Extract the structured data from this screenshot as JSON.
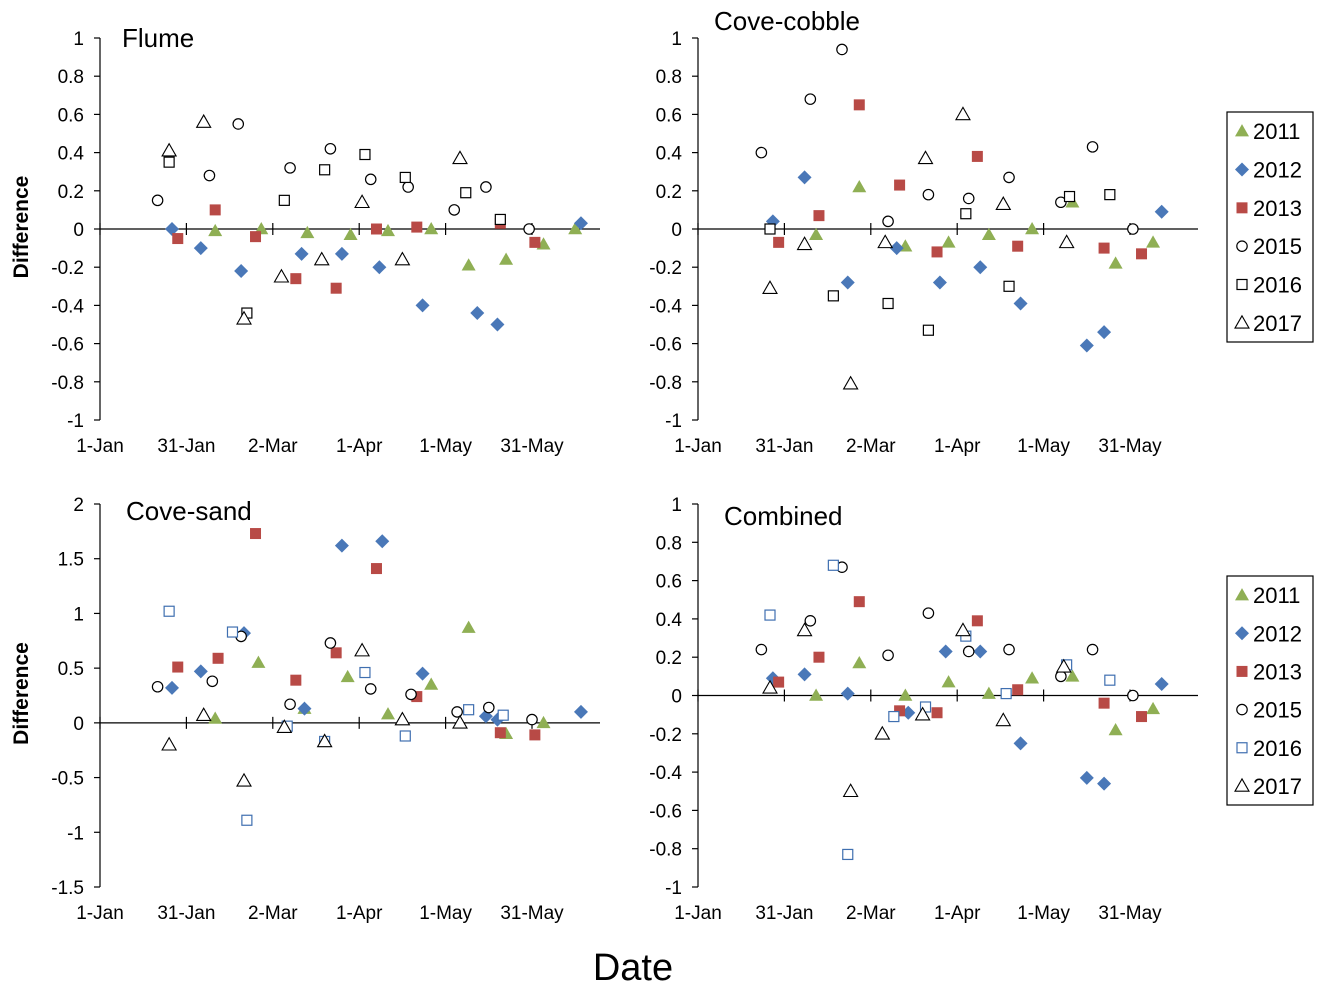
{
  "figure": {
    "xlabel_shared": "Date",
    "legend_entries": [
      "2011",
      "2012",
      "2013",
      "2015",
      "2016",
      "2017"
    ]
  },
  "series_styles": {
    "2011": {
      "marker": "triangle-filled",
      "color": "#8faf54"
    },
    "2012": {
      "marker": "diamond-filled",
      "color": "#4a78b8"
    },
    "2013": {
      "marker": "square-filled",
      "color": "#b84a46"
    },
    "2015": {
      "marker": "circle-open",
      "color": "#000000"
    },
    "2016a": {
      "marker": "square-open",
      "color": "#000000"
    },
    "2016b": {
      "marker": "square-open",
      "color": "#3f6fb0"
    },
    "2017": {
      "marker": "triangle-open",
      "color": "#000000"
    }
  },
  "chart_data": [
    {
      "type": "scatter",
      "title": "Flume",
      "ylabel": "Difference",
      "ylim": [
        -1,
        1
      ],
      "yticks": [
        -1,
        -0.8,
        -0.6,
        -0.4,
        -0.2,
        0,
        0.2,
        0.4,
        0.6,
        0.8,
        1
      ],
      "ytick_labels": [
        "-1",
        "-0.8",
        "-0.6",
        "-0.4",
        "-0.2",
        "0",
        "0.2",
        "0.4",
        "0.6",
        "0.8",
        "1"
      ],
      "x_tick_labels": [
        "1-Jan",
        "31-Jan",
        "2-Mar",
        "1-Apr",
        "1-May",
        "31-May"
      ],
      "legend": false,
      "series": [
        {
          "name": "2011",
          "x": [
            40,
            56,
            72,
            87,
            100,
            115,
            128,
            141,
            154,
            165
          ],
          "y": [
            -0.01,
            0.0,
            -0.02,
            -0.03,
            -0.01,
            0.0,
            -0.19,
            -0.16,
            -0.08,
            0.0
          ]
        },
        {
          "name": "2012",
          "x": [
            25,
            35,
            49,
            70,
            84,
            97,
            112,
            131,
            138,
            167
          ],
          "y": [
            0.0,
            -0.1,
            -0.22,
            -0.13,
            -0.13,
            -0.2,
            -0.4,
            -0.44,
            -0.5,
            0.03
          ]
        },
        {
          "name": "2013",
          "x": [
            27,
            40,
            54,
            68,
            82,
            96,
            110,
            139,
            151
          ],
          "y": [
            -0.05,
            0.1,
            -0.04,
            -0.26,
            -0.31,
            0.0,
            0.01,
            0.03,
            -0.07
          ]
        },
        {
          "name": "2015",
          "x": [
            20,
            38,
            48,
            66,
            80,
            94,
            107,
            123,
            134,
            149
          ],
          "y": [
            0.15,
            0.28,
            0.55,
            0.32,
            0.42,
            0.26,
            0.22,
            0.1,
            0.22,
            0.0
          ]
        },
        {
          "name": "2016",
          "x": [
            24,
            51,
            64,
            78,
            92,
            106,
            127,
            139
          ],
          "y": [
            0.35,
            -0.44,
            0.15,
            0.31,
            0.39,
            0.27,
            0.19,
            0.05
          ]
        },
        {
          "name": "2017",
          "x": [
            24,
            36,
            50,
            63,
            77,
            91,
            105,
            125
          ],
          "y": [
            0.41,
            0.56,
            -0.47,
            -0.25,
            -0.16,
            0.14,
            -0.16,
            0.37
          ]
        }
      ]
    },
    {
      "type": "scatter",
      "title": "Cove-cobble",
      "ylabel": "",
      "ylim": [
        -1,
        1
      ],
      "yticks": [
        -1,
        -0.8,
        -0.6,
        -0.4,
        -0.2,
        0,
        0.2,
        0.4,
        0.6,
        0.8,
        1
      ],
      "ytick_labels": [
        "-1",
        "-0.8",
        "-0.6",
        "-0.4",
        "-0.2",
        "0",
        "0.2",
        "0.4",
        "0.6",
        "0.8",
        "1"
      ],
      "x_tick_labels": [
        "1-Jan",
        "31-Jan",
        "2-Mar",
        "1-Apr",
        "1-May",
        "31-May"
      ],
      "legend": true,
      "series": [
        {
          "name": "2011",
          "x": [
            41,
            56,
            72,
            87,
            101,
            116,
            130,
            145,
            158
          ],
          "y": [
            -0.03,
            0.22,
            -0.09,
            -0.07,
            -0.03,
            0.0,
            0.14,
            -0.18,
            -0.07
          ]
        },
        {
          "name": "2012",
          "x": [
            26,
            37,
            52,
            69,
            84,
            98,
            112,
            135,
            141,
            161
          ],
          "y": [
            0.04,
            0.27,
            -0.28,
            -0.1,
            -0.28,
            -0.2,
            -0.39,
            -0.61,
            -0.54,
            0.09
          ]
        },
        {
          "name": "2013",
          "x": [
            28,
            42,
            56,
            70,
            83,
            97,
            111,
            141,
            154
          ],
          "y": [
            -0.07,
            0.07,
            0.65,
            0.23,
            -0.12,
            0.38,
            -0.09,
            -0.1,
            -0.13
          ]
        },
        {
          "name": "2015",
          "x": [
            22,
            39,
            50,
            66,
            80,
            94,
            108,
            126,
            137,
            151
          ],
          "y": [
            0.4,
            0.68,
            0.94,
            0.04,
            0.18,
            0.16,
            0.27,
            0.14,
            0.43,
            0.0
          ]
        },
        {
          "name": "2016",
          "x": [
            25,
            47,
            66,
            80,
            93,
            108,
            129,
            143
          ],
          "y": [
            0.0,
            -0.35,
            -0.39,
            -0.53,
            0.08,
            -0.3,
            0.17,
            0.18
          ]
        },
        {
          "name": "2017",
          "x": [
            25,
            37,
            53,
            65,
            79,
            92,
            106,
            128
          ],
          "y": [
            -0.31,
            -0.08,
            -0.81,
            -0.07,
            0.37,
            0.6,
            0.13,
            -0.07
          ]
        }
      ]
    },
    {
      "type": "scatter",
      "title": "Cove-sand",
      "ylabel": "Difference",
      "ylim": [
        -1.5,
        2
      ],
      "yticks": [
        -1.5,
        -1,
        -0.5,
        0,
        0.5,
        1,
        1.5,
        2
      ],
      "ytick_labels": [
        "-1.5",
        "-1",
        "-0.5",
        "0",
        "0.5",
        "1",
        "1.5",
        "2"
      ],
      "x_tick_labels": [
        "1-Jan",
        "31-Jan",
        "2-Mar",
        "1-Apr",
        "1-May",
        "31-May"
      ],
      "legend": false,
      "series": [
        {
          "name": "2011",
          "x": [
            40,
            55,
            71,
            86,
            100,
            115,
            128,
            141,
            154
          ],
          "y": [
            0.04,
            0.55,
            0.13,
            0.42,
            0.08,
            0.35,
            0.87,
            -0.1,
            0.0
          ]
        },
        {
          "name": "2012",
          "x": [
            25,
            35,
            50,
            71,
            84,
            98,
            112,
            134,
            138,
            167
          ],
          "y": [
            0.32,
            0.47,
            0.82,
            0.13,
            1.62,
            1.66,
            0.45,
            0.06,
            0.03,
            0.1
          ]
        },
        {
          "name": "2013",
          "x": [
            27,
            41,
            54,
            68,
            82,
            96,
            110,
            139,
            151
          ],
          "y": [
            0.51,
            0.59,
            1.73,
            0.39,
            0.64,
            1.41,
            0.24,
            -0.09,
            -0.11
          ]
        },
        {
          "name": "2015",
          "x": [
            20,
            39,
            49,
            66,
            80,
            94,
            108,
            124,
            135,
            150
          ],
          "y": [
            0.33,
            0.38,
            0.79,
            0.17,
            0.73,
            0.31,
            0.26,
            0.1,
            0.14,
            0.03
          ]
        },
        {
          "name": "2016",
          "x": [
            24,
            46,
            51,
            65,
            78,
            92,
            106,
            128,
            140
          ],
          "y": [
            1.02,
            0.83,
            -0.89,
            -0.03,
            -0.17,
            0.46,
            -0.12,
            0.12,
            0.07
          ]
        },
        {
          "name": "2017",
          "x": [
            24,
            36,
            50,
            64,
            78,
            91,
            105,
            125
          ],
          "y": [
            -0.2,
            0.07,
            -0.53,
            -0.04,
            -0.17,
            0.66,
            0.03,
            0.0
          ]
        }
      ]
    },
    {
      "type": "scatter",
      "title": "Combined",
      "ylabel": "",
      "ylim": [
        -1,
        1
      ],
      "yticks": [
        -1,
        -0.8,
        -0.6,
        -0.4,
        -0.2,
        0,
        0.2,
        0.4,
        0.6,
        0.8,
        1
      ],
      "ytick_labels": [
        "-1",
        "-0.8",
        "-0.6",
        "-0.4",
        "-0.2",
        "0",
        "0.2",
        "0.4",
        "0.6",
        "0.8",
        "1"
      ],
      "x_tick_labels": [
        "1-Jan",
        "31-Jan",
        "2-Mar",
        "1-Apr",
        "1-May",
        "31-May"
      ],
      "legend": true,
      "series": [
        {
          "name": "2011",
          "x": [
            41,
            56,
            72,
            87,
            101,
            116,
            130,
            145,
            158
          ],
          "y": [
            0.0,
            0.17,
            0.0,
            0.07,
            0.01,
            0.09,
            0.1,
            -0.18,
            -0.07
          ]
        },
        {
          "name": "2012",
          "x": [
            26,
            37,
            52,
            73,
            86,
            98,
            112,
            135,
            141,
            161
          ],
          "y": [
            0.09,
            0.11,
            0.01,
            -0.09,
            0.23,
            0.23,
            -0.25,
            -0.43,
            -0.46,
            0.06
          ]
        },
        {
          "name": "2013",
          "x": [
            28,
            42,
            56,
            70,
            83,
            97,
            111,
            141,
            154
          ],
          "y": [
            0.07,
            0.2,
            0.49,
            -0.08,
            -0.09,
            0.39,
            0.03,
            -0.04,
            -0.11
          ]
        },
        {
          "name": "2015",
          "x": [
            22,
            39,
            50,
            66,
            80,
            94,
            108,
            126,
            137,
            151
          ],
          "y": [
            0.24,
            0.39,
            0.67,
            0.21,
            0.43,
            0.23,
            0.24,
            0.1,
            0.24,
            0.0
          ]
        },
        {
          "name": "2016",
          "x": [
            25,
            47,
            52,
            68,
            79,
            93,
            107,
            128,
            143
          ],
          "y": [
            0.42,
            0.68,
            -0.83,
            -0.11,
            -0.06,
            0.31,
            0.01,
            0.16,
            0.08
          ]
        },
        {
          "name": "2017",
          "x": [
            25,
            37,
            53,
            64,
            78,
            92,
            106,
            127
          ],
          "y": [
            0.04,
            0.34,
            -0.5,
            -0.2,
            -0.1,
            0.34,
            -0.13,
            0.15
          ]
        }
      ]
    }
  ]
}
